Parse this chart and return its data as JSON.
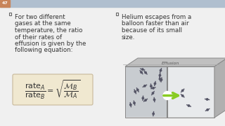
{
  "bg_color": "#f0f0f0",
  "header_color": "#b0bfcf",
  "header_left_color": "#c8845a",
  "slide_num": "47",
  "left_bullet_lines": [
    "For two different",
    "gases at the same",
    "temperature, the ratio",
    "of their rates of",
    "effusion is given by the",
    "following equation:"
  ],
  "right_bullet_lines": [
    "Helium escapes from a",
    "balloon faster than air",
    "because of its small",
    "size."
  ],
  "effusion_label": "Effusion",
  "formula_bg": "#f0e8d0",
  "text_color": "#333333",
  "font_size": 6.2,
  "bullet_color": "#666666"
}
